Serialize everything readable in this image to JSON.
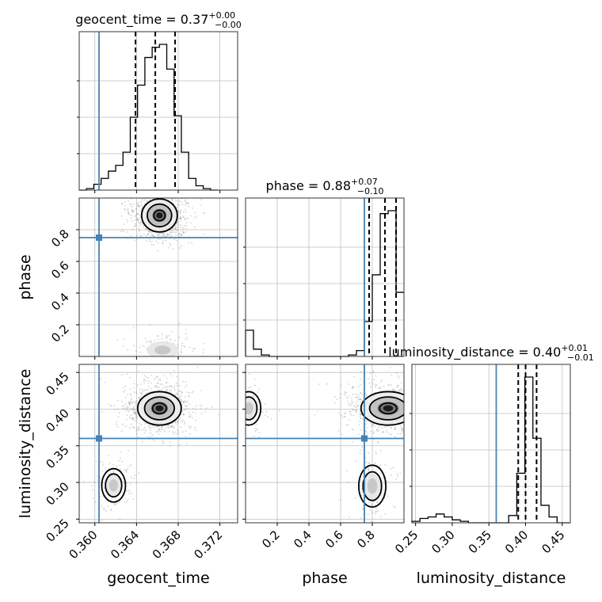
{
  "chart_data": {
    "type": "corner",
    "parameters": [
      "geocent_time",
      "phase",
      "luminosity_distance"
    ],
    "truths": {
      "geocent_time": 0.3604,
      "phase": 0.75,
      "luminosity_distance": 0.36
    },
    "axes": {
      "geocent_time": {
        "range": [
          0.3585,
          0.3737
        ],
        "ticks": [
          0.36,
          0.364,
          0.368,
          0.372
        ],
        "tick_labels": [
          "0.360",
          "0.364",
          "0.368",
          "0.372"
        ],
        "label": "geocent_time"
      },
      "phase": {
        "range": [
          0.0,
          1.0
        ],
        "ticks": [
          0.2,
          0.4,
          0.6,
          0.8
        ],
        "tick_labels": [
          "0.2",
          "0.4",
          "0.6",
          "0.8"
        ],
        "label": "phase"
      },
      "luminosity_distance": {
        "range": [
          0.245,
          0.461
        ],
        "ticks": [
          0.25,
          0.3,
          0.35,
          0.4,
          0.45
        ],
        "tick_labels": [
          "0.25",
          "0.30",
          "0.35",
          "0.40",
          "0.45"
        ],
        "label": "luminosity_distance"
      }
    },
    "titles": {
      "geocent_time": {
        "text": "geocent_time = 0.37",
        "sup": "+0.00",
        "sub": "−0.00"
      },
      "phase": {
        "text": "phase = 0.88",
        "sup": "+0.07",
        "sub": "−0.10"
      },
      "luminosity_distance": {
        "text": "luminosity_distance = 0.40",
        "sup": "+0.01",
        "sub": "−0.01"
      }
    },
    "quantiles": {
      "geocent_time": [
        0.3639,
        0.3658,
        0.3677
      ],
      "phase": [
        0.78,
        0.88,
        0.95
      ],
      "luminosity_distance": [
        0.39,
        0.4,
        0.415
      ]
    },
    "histograms": {
      "geocent_time": {
        "edges": [
          0.3585,
          0.3592,
          0.3599,
          0.3606,
          0.3613,
          0.362,
          0.3627,
          0.3634,
          0.3641,
          0.3648,
          0.3655,
          0.3662,
          0.3669,
          0.3676,
          0.3683,
          0.369,
          0.3697,
          0.3704,
          0.3711,
          0.3718
        ],
        "counts": [
          0,
          0.01,
          0.04,
          0.08,
          0.13,
          0.17,
          0.26,
          0.5,
          0.72,
          0.91,
          0.98,
          1.0,
          0.83,
          0.51,
          0.26,
          0.08,
          0.03,
          0.01,
          0.0
        ]
      },
      "phase": {
        "edges": [
          0.0,
          0.05,
          0.1,
          0.15,
          0.2,
          0.25,
          0.3,
          0.35,
          0.4,
          0.45,
          0.5,
          0.55,
          0.6,
          0.65,
          0.7,
          0.75,
          0.8,
          0.85,
          0.9,
          0.95,
          1.0
        ],
        "counts": [
          0.18,
          0.05,
          0.01,
          0.0,
          0.0,
          0.0,
          0.0,
          0.0,
          0.0,
          0.0,
          0.0,
          0.0,
          0.0,
          0.01,
          0.04,
          0.24,
          0.56,
          0.98,
          1.0,
          0.44
        ]
      },
      "luminosity_distance": {
        "edges": [
          0.245,
          0.256,
          0.267,
          0.278,
          0.289,
          0.3,
          0.311,
          0.322,
          0.333,
          0.344,
          0.355,
          0.366,
          0.377,
          0.388,
          0.399,
          0.41,
          0.421,
          0.432,
          0.443,
          0.454,
          0.461
        ],
        "counts": [
          0.01,
          0.03,
          0.04,
          0.06,
          0.04,
          0.02,
          0.01,
          0.0,
          0.0,
          0.0,
          0.0,
          0.0,
          0.05,
          0.34,
          1.0,
          0.58,
          0.12,
          0.04,
          0.0,
          0.0
        ]
      }
    },
    "contour_panels": [
      {
        "x": "geocent_time",
        "y": "phase",
        "modes": [
          {
            "cx": 0.3662,
            "cy": 0.89,
            "sx": 0.0009,
            "sy": 0.055,
            "weight": 0.85,
            "outer_contour": true,
            "core": true
          },
          {
            "cx": 0.3665,
            "cy": 0.04,
            "sx": 0.0011,
            "sy": 0.04,
            "weight": 0.15,
            "outer_contour": false,
            "core": false
          }
        ]
      },
      {
        "x": "geocent_time",
        "y": "luminosity_distance",
        "modes": [
          {
            "cx": 0.3662,
            "cy": 0.401,
            "sx": 0.0011,
            "sy": 0.012,
            "weight": 0.85,
            "outer_contour": true,
            "core": true
          },
          {
            "cx": 0.3618,
            "cy": 0.296,
            "sx": 0.0006,
            "sy": 0.012,
            "weight": 0.15,
            "outer_contour": true,
            "core": false
          }
        ]
      },
      {
        "x": "phase",
        "y": "luminosity_distance",
        "modes": [
          {
            "cx": 0.9,
            "cy": 0.401,
            "sx": 0.09,
            "sy": 0.012,
            "weight": 0.75,
            "outer_contour": true,
            "core": true
          },
          {
            "cx": 0.02,
            "cy": 0.401,
            "sx": 0.04,
            "sy": 0.012,
            "weight": 0.1,
            "outer_contour": true,
            "core": false
          },
          {
            "cx": 0.8,
            "cy": 0.295,
            "sx": 0.045,
            "sy": 0.015,
            "weight": 0.15,
            "outer_contour": true,
            "core": false
          }
        ]
      }
    ],
    "colors": {
      "truth": "#4682b4",
      "histogram": "#000000",
      "samples": "#7f7f7f",
      "grid": "#bfbfbf"
    },
    "grid": true
  }
}
